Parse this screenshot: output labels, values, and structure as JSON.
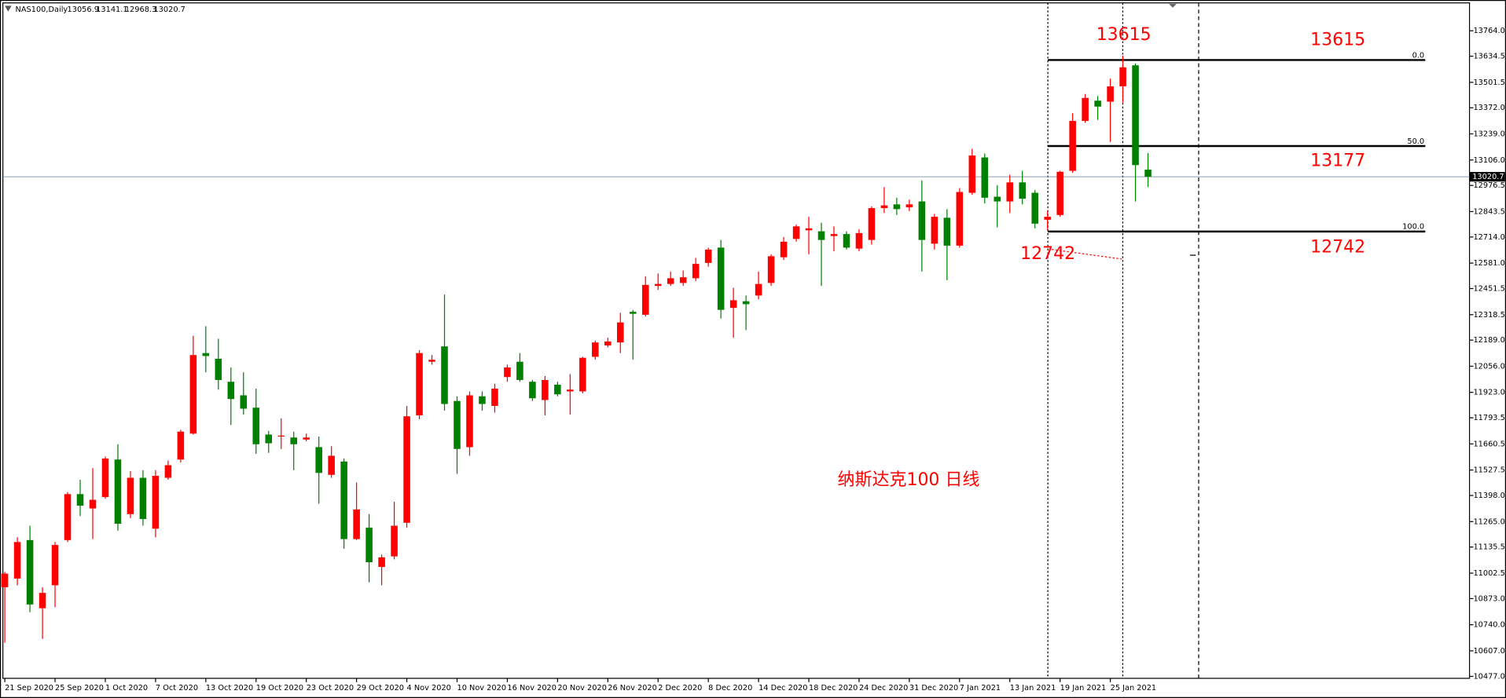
{
  "chart_data": {
    "type": "candlestick",
    "symbol": "NAS100,Daily",
    "caption": "纳斯达克100  日线",
    "annotations": [
      "13615",
      "13615",
      "13177",
      "12742",
      "12742"
    ],
    "up_color": "#ff0000",
    "down_color": "#008000",
    "categories": [
      "21 Sep 2020",
      null,
      null,
      null,
      "25 Sep 2020",
      null,
      null,
      null,
      "1 Oct 2020",
      null,
      null,
      null,
      "7 Oct 2020",
      null,
      null,
      null,
      "13 Oct 2020",
      null,
      null,
      null,
      "19 Oct 2020",
      null,
      null,
      null,
      "23 Oct 2020",
      null,
      null,
      null,
      "29 Oct 2020",
      null,
      null,
      null,
      "4 Nov 2020",
      null,
      null,
      null,
      "10 Nov 2020",
      null,
      null,
      null,
      "16 Nov 2020",
      null,
      null,
      null,
      "20 Nov 2020",
      null,
      null,
      null,
      "26 Nov 2020",
      null,
      null,
      null,
      "2 Dec 2020",
      null,
      null,
      null,
      "8 Dec 2020",
      null,
      null,
      null,
      "14 Dec 2020",
      null,
      null,
      null,
      "18 Dec 2020",
      null,
      null,
      null,
      "24 Dec 2020",
      null,
      null,
      null,
      "31 Dec 2020",
      null,
      null,
      null,
      "7 Jan 2021",
      null,
      null,
      null,
      "13 Jan 2021",
      null,
      null,
      null,
      "19 Jan 2021",
      null,
      null,
      null,
      "25 Jan 2021",
      null,
      null,
      null
    ],
    "open": [
      10931,
      10975,
      11171,
      10824,
      10941,
      11171,
      11405,
      11332,
      11390,
      11581,
      11303,
      11488,
      11229,
      11488,
      11581,
      11713,
      12123,
      12094,
      11977,
      11908,
      11845,
      11708,
      11698,
      11693,
      11683,
      11644,
      11503,
      11571,
      11176,
      11234,
      11034,
      11088,
      11259,
      11806,
      12079,
      12157,
      11879,
      11644,
      11903,
      11854,
      12001,
      12079,
      11977,
      11884,
      11962,
      11928,
      11928,
      12104,
      12162,
      12177,
      12333,
      12318,
      12465,
      12475,
      12480,
      12504,
      12582,
      12660,
      12353,
      12387,
      12416,
      12480,
      12611,
      12704,
      12748,
      12743,
      12719,
      12729,
      12655,
      12699,
      12861,
      12880,
      12865,
      12895,
      12680,
      12812,
      12670,
      12939,
      13119,
      12919,
      12895,
      12992,
      12939,
      12802,
      12826,
      13051,
      13305,
      13408,
      13403,
      13481,
      13588,
      13056.9
    ],
    "high": [
      11009,
      11185,
      11244,
      10931,
      11161,
      11415,
      11478,
      11537,
      11596,
      11659,
      11522,
      11527,
      11527,
      11576,
      11732,
      12211,
      12260,
      12196,
      12050,
      12025,
      11942,
      11727,
      11791,
      11723,
      11713,
      11698,
      11649,
      11586,
      11464,
      11303,
      11097,
      11366,
      11854,
      12138,
      12113,
      12421,
      11903,
      11928,
      11928,
      11967,
      12064,
      12123,
      11986,
      12006,
      11977,
      12016,
      12104,
      12187,
      12201,
      12328,
      12343,
      12514,
      12528,
      12538,
      12543,
      12607,
      12660,
      12699,
      12455,
      12416,
      12538,
      12626,
      12714,
      12777,
      12817,
      12787,
      12768,
      12743,
      12753,
      12870,
      12968,
      12914,
      12904,
      13002,
      12831,
      12856,
      12963,
      13163,
      13139,
      12978,
      13031,
      13051,
      12953,
      12846,
      13051,
      13344,
      13442,
      13432,
      13520,
      13637,
      13598,
      13141.1
    ],
    "low": [
      10648,
      10941,
      10804,
      10668,
      10829,
      11161,
      11293,
      11176,
      11381,
      11219,
      11283,
      11244,
      11185,
      11478,
      11566,
      11708,
      12025,
      11937,
      11757,
      11810,
      11610,
      11615,
      11635,
      11527,
      11674,
      11356,
      11488,
      11127,
      11171,
      10956,
      10941,
      11073,
      11234,
      11786,
      12064,
      11830,
      11508,
      11600,
      11830,
      11820,
      11977,
      11977,
      11879,
      11806,
      11903,
      11810,
      11918,
      12089,
      12152,
      12123,
      12089,
      12309,
      12445,
      12465,
      12465,
      12489,
      12563,
      12299,
      12201,
      12240,
      12397,
      12465,
      12597,
      12690,
      12626,
      12465,
      12641,
      12650,
      12641,
      12675,
      12836,
      12826,
      12846,
      12538,
      12650,
      12494,
      12660,
      12929,
      12885,
      12763,
      12836,
      12880,
      12758,
      12748,
      12817,
      13041,
      13295,
      13310,
      13198,
      13398,
      12895,
      12968.3
    ],
    "close": [
      11000,
      11161,
      10843,
      10902,
      11146,
      11405,
      11346,
      11376,
      11586,
      11254,
      11488,
      11278,
      11498,
      11552,
      11723,
      12113,
      12108,
      11986,
      11889,
      11840,
      11659,
      11664,
      11703,
      11659,
      11693,
      11513,
      11600,
      11176,
      11327,
      11058,
      11083,
      11244,
      11801,
      12123,
      12089,
      11864,
      11635,
      11908,
      11864,
      11942,
      12050,
      11986,
      11893,
      11986,
      11913,
      11937,
      12099,
      12177,
      12182,
      12279,
      12323,
      12470,
      12475,
      12504,
      12509,
      12577,
      12650,
      12343,
      12392,
      12372,
      12475,
      12616,
      12690,
      12768,
      12758,
      12699,
      12729,
      12660,
      12734,
      12861,
      12875,
      12856,
      12880,
      12699,
      12817,
      12670,
      12943,
      13129,
      12914,
      12895,
      12992,
      12909,
      12782,
      12817,
      13046,
      13305,
      13422,
      13378,
      13481,
      13578,
      13080,
      13020.7
    ],
    "last_price": 13020.7,
    "fib_levels": [
      {
        "value": 13615,
        "label": "0.0"
      },
      {
        "value": 13177,
        "label": "50.0"
      },
      {
        "value": 12742,
        "label": "100.0"
      }
    ],
    "ylim": [
      10467,
      13906
    ],
    "yticks": [
      {
        "value": 13764,
        "label": "13764.0"
      },
      13634.5,
      13501.5,
      {
        "value": 13372,
        "label": "13372.0"
      },
      {
        "value": 13239,
        "label": "13239.0"
      },
      {
        "value": 13106,
        "label": "13106.0"
      },
      12976.5,
      12843.5,
      {
        "value": 12714,
        "label": "12714.0"
      },
      {
        "value": 12581,
        "label": "12581.0"
      },
      12451.5,
      12318.5,
      {
        "value": 12189,
        "label": "12189.0"
      },
      {
        "value": 12056,
        "label": "12056.0"
      },
      {
        "value": 11923,
        "label": "11923.0"
      },
      11793.5,
      11660.5,
      11527.5,
      {
        "value": 11398,
        "label": "11398.0"
      },
      {
        "value": 11265,
        "label": "11265.0"
      },
      11135.5,
      11002.5,
      {
        "value": 10873,
        "label": "10873.0"
      },
      {
        "value": 10740,
        "label": "10740.0"
      },
      {
        "value": 10607,
        "label": "10607.0"
      },
      {
        "value": 10477,
        "label": "10477.0"
      }
    ]
  }
}
